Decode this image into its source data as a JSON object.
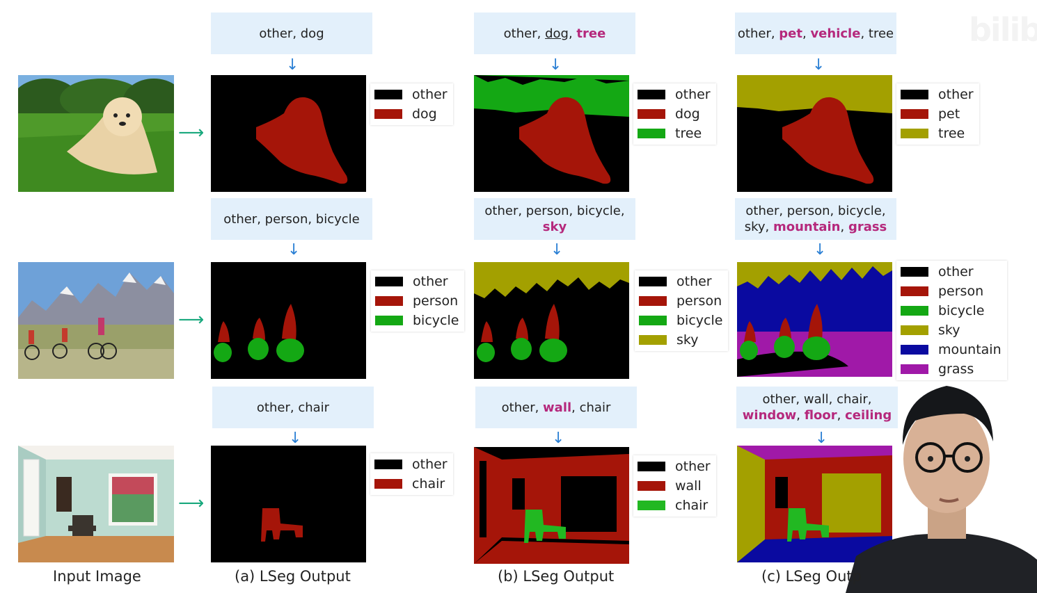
{
  "watermark": "bilibili",
  "colors": {
    "other": "#000000",
    "dog": "#a51509",
    "pet": "#a51509",
    "person": "#a51509",
    "wall": "#a51509",
    "chair_red": "#a51509",
    "tree": "#14a814",
    "bicycle": "#14a814",
    "chair": "#22b822",
    "sky": "#a3a000",
    "mountain": "#0a0aa0",
    "grass": "#a019a8",
    "highlight": "#b5287c",
    "arrow_blue": "#2a7fd4",
    "arrow_green": "#19a87d",
    "prompt_bg": "#e3f0fb"
  },
  "prompts": {
    "r0c0": [
      "other, dog"
    ],
    "r0c1": [
      "other, ",
      "dog",
      ", ",
      "tree"
    ],
    "r0c2": [
      "other, ",
      "pet",
      ", ",
      "vehicle",
      ", tree"
    ],
    "r1c0": [
      "other, person, bicycle"
    ],
    "r1c1": [
      "other, person, bicycle,",
      "sky"
    ],
    "r1c2": [
      "other, person, bicycle,",
      "sky, ",
      "mountain",
      ", ",
      "grass"
    ],
    "r2c0": [
      "other, chair"
    ],
    "r2c1": [
      "other, ",
      "wall",
      ", chair"
    ],
    "r2c2": [
      "other, wall, chair,",
      "window",
      ", ",
      "floor",
      ", ",
      "ceiling"
    ]
  },
  "legends": {
    "r0c0": [
      "other",
      "dog"
    ],
    "r0c1": [
      "other",
      "dog",
      "tree"
    ],
    "r0c2": [
      "other",
      "pet",
      "tree"
    ],
    "r1c0": [
      "other",
      "person",
      "bicycle"
    ],
    "r1c1": [
      "other",
      "person",
      "bicycle",
      "sky"
    ],
    "r1c2": [
      "other",
      "person",
      "bicycle",
      "sky",
      "mountain",
      "grass"
    ],
    "r2c0": [
      "other",
      "chair"
    ],
    "r2c1": [
      "other",
      "wall",
      "chair"
    ]
  },
  "captions": {
    "input": "Input Image",
    "a": "(a) LSeg Output",
    "b": "(b) LSeg Output",
    "c": "(c) LSeg Outp"
  }
}
